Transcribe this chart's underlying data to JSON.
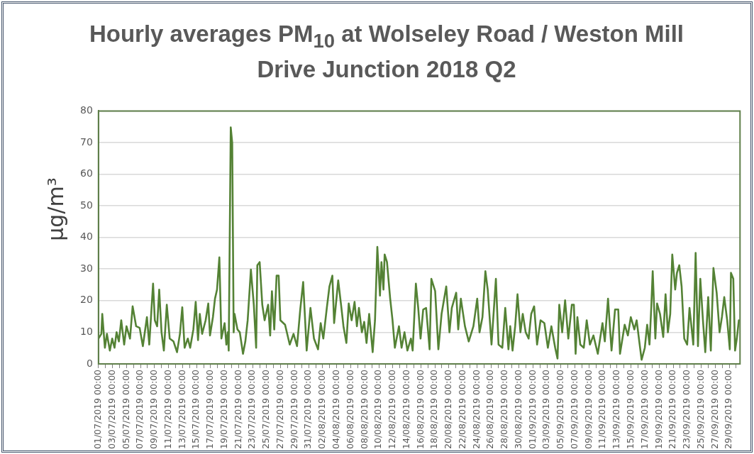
{
  "chart_data": {
    "type": "line",
    "title": "Hourly averages PM$_{10}$ at Wolseley Road / Weston Mill Drive Junction 2018 Q2",
    "ylabel": "µg/m³",
    "xlim": [
      "2019-07-01T00:00",
      "2019-09-30T13:00"
    ],
    "ylim": [
      0,
      80
    ],
    "yticks": [
      0,
      10,
      20,
      30,
      40,
      50,
      60,
      70,
      80
    ],
    "grid": "y",
    "legend": false,
    "marker": "none",
    "line_style": "solid",
    "xticks": [
      {
        "value": "2019-07-01T00:00",
        "label": "01/07/2019 00:00"
      },
      {
        "value": "2019-07-02T00:00",
        "label": null
      },
      {
        "value": "2019-07-03T00:00",
        "label": "03/07/2019 00:00"
      },
      {
        "value": "2019-07-04T00:00",
        "label": null
      },
      {
        "value": "2019-07-05T00:00",
        "label": "05/07/2019 00:00"
      },
      {
        "value": "2019-07-06T00:00",
        "label": null
      },
      {
        "value": "2019-07-07T00:00",
        "label": "07/07/2019 00:00"
      },
      {
        "value": "2019-07-08T00:00",
        "label": null
      },
      {
        "value": "2019-07-09T00:00",
        "label": "09/07/2019 00:00"
      },
      {
        "value": "2019-07-10T00:00",
        "label": null
      },
      {
        "value": "2019-07-11T00:00",
        "label": "11/07/2019 00:00"
      },
      {
        "value": "2019-07-12T00:00",
        "label": null
      },
      {
        "value": "2019-07-13T00:00",
        "label": "13/07/2019 00:00"
      },
      {
        "value": "2019-07-14T00:00",
        "label": null
      },
      {
        "value": "2019-07-15T00:00",
        "label": "15/07/2019 00:00"
      },
      {
        "value": "2019-07-16T00:00",
        "label": null
      },
      {
        "value": "2019-07-17T00:00",
        "label": "17/07/2019 00:00"
      },
      {
        "value": "2019-07-18T00:00",
        "label": null
      },
      {
        "value": "2019-07-19T00:00",
        "label": "19/07/2019 00:00"
      },
      {
        "value": "2019-07-20T00:00",
        "label": null
      },
      {
        "value": "2019-07-21T00:00",
        "label": "21/07/2019 00:00"
      },
      {
        "value": "2019-07-22T00:00",
        "label": null
      },
      {
        "value": "2019-07-23T00:00",
        "label": "23/07/2019 00:00"
      },
      {
        "value": "2019-07-24T00:00",
        "label": null
      },
      {
        "value": "2019-07-25T00:00",
        "label": "25/07/2019 00:00"
      },
      {
        "value": "2019-07-26T00:00",
        "label": null
      },
      {
        "value": "2019-07-27T00:00",
        "label": "27/07/2019 00:00"
      },
      {
        "value": "2019-07-28T00:00",
        "label": null
      },
      {
        "value": "2019-07-29T00:00",
        "label": "29/07/2019 00:00"
      },
      {
        "value": "2019-07-30T00:00",
        "label": null
      },
      {
        "value": "2019-07-31T00:00",
        "label": "31/07/2019 00:00"
      },
      {
        "value": "2019-08-01T00:00",
        "label": null
      },
      {
        "value": "2019-08-02T00:00",
        "label": "02/08/2019 00:00"
      },
      {
        "value": "2019-08-03T00:00",
        "label": null
      },
      {
        "value": "2019-08-04T00:00",
        "label": "04/08/2019 00:00"
      },
      {
        "value": "2019-08-05T00:00",
        "label": null
      },
      {
        "value": "2019-08-06T00:00",
        "label": "06/08/2019 00:00"
      },
      {
        "value": "2019-08-07T00:00",
        "label": null
      },
      {
        "value": "2019-08-08T00:00",
        "label": "08/08/2019 00:00"
      },
      {
        "value": "2019-08-09T00:00",
        "label": null
      },
      {
        "value": "2019-08-10T00:00",
        "label": "10/08/2019 00:00"
      },
      {
        "value": "2019-08-11T00:00",
        "label": null
      },
      {
        "value": "2019-08-12T00:00",
        "label": "12/08/2019 00:00"
      },
      {
        "value": "2019-08-13T00:00",
        "label": null
      },
      {
        "value": "2019-08-14T00:00",
        "label": "14/08/2019 00:00"
      },
      {
        "value": "2019-08-15T00:00",
        "label": null
      },
      {
        "value": "2019-08-16T00:00",
        "label": "16/08/2019 00:00"
      },
      {
        "value": "2019-08-17T00:00",
        "label": null
      },
      {
        "value": "2019-08-18T00:00",
        "label": "18/08/2019 00:00"
      },
      {
        "value": "2019-08-19T00:00",
        "label": null
      },
      {
        "value": "2019-08-20T00:00",
        "label": "20/08/2019 00:00"
      },
      {
        "value": "2019-08-21T00:00",
        "label": null
      },
      {
        "value": "2019-08-22T00:00",
        "label": "22/08/2019 00:00"
      },
      {
        "value": "2019-08-23T00:00",
        "label": null
      },
      {
        "value": "2019-08-24T00:00",
        "label": "24/08/2019 00:00"
      },
      {
        "value": "2019-08-25T00:00",
        "label": null
      },
      {
        "value": "2019-08-26T00:00",
        "label": "26/08/2019 00:00"
      },
      {
        "value": "2019-08-27T00:00",
        "label": null
      },
      {
        "value": "2019-08-28T00:00",
        "label": "28/08/2019 00:00"
      },
      {
        "value": "2019-08-29T00:00",
        "label": null
      },
      {
        "value": "2019-08-30T00:00",
        "label": "30/08/2019 00:00"
      },
      {
        "value": "2019-08-31T00:00",
        "label": null
      },
      {
        "value": "2019-09-01T00:00",
        "label": "01/09/2019 00:00"
      },
      {
        "value": "2019-09-02T00:00",
        "label": null
      },
      {
        "value": "2019-09-03T00:00",
        "label": "03/09/2019 00:00"
      },
      {
        "value": "2019-09-04T00:00",
        "label": null
      },
      {
        "value": "2019-09-05T00:00",
        "label": "05/09/2019 00:00"
      },
      {
        "value": "2019-09-06T00:00",
        "label": null
      },
      {
        "value": "2019-09-07T00:00",
        "label": "07/09/2019 00:00"
      },
      {
        "value": "2019-09-08T00:00",
        "label": null
      },
      {
        "value": "2019-09-09T00:00",
        "label": "09/09/2019 00:00"
      },
      {
        "value": "2019-09-10T00:00",
        "label": null
      },
      {
        "value": "2019-09-11T00:00",
        "label": "11/09/2019 00:00"
      },
      {
        "value": "2019-09-12T00:00",
        "label": null
      },
      {
        "value": "2019-09-13T00:00",
        "label": "13/09/2019 00:00"
      },
      {
        "value": "2019-09-14T00:00",
        "label": null
      },
      {
        "value": "2019-09-15T00:00",
        "label": "15/09/2019 00:00"
      },
      {
        "value": "2019-09-16T00:00",
        "label": null
      },
      {
        "value": "2019-09-17T00:00",
        "label": "17/09/2019 00:00"
      },
      {
        "value": "2019-09-18T00:00",
        "label": null
      },
      {
        "value": "2019-09-19T00:00",
        "label": "19/09/2019 00:00"
      },
      {
        "value": "2019-09-20T00:00",
        "label": null
      },
      {
        "value": "2019-09-21T00:00",
        "label": "21/09/2019 00:00"
      },
      {
        "value": "2019-09-22T00:00",
        "label": null
      },
      {
        "value": "2019-09-23T00:00",
        "label": "23/09/2019 00:00"
      },
      {
        "value": "2019-09-24T00:00",
        "label": null
      },
      {
        "value": "2019-09-25T00:00",
        "label": "25/09/2019 00:00"
      },
      {
        "value": "2019-09-26T00:00",
        "label": null
      },
      {
        "value": "2019-09-27T00:00",
        "label": "27/09/2019 00:00"
      },
      {
        "value": "2019-09-28T00:00",
        "label": null
      },
      {
        "value": "2019-09-29T00:00",
        "label": "29/09/2019 00:00"
      },
      {
        "value": "2019-09-30T00:00",
        "label": null
      }
    ],
    "series": [
      {
        "color": "#548235",
        "x": [
          "2019-07-01T00:00",
          "2019-07-01T10:00",
          "2019-07-01T13:00",
          "2019-07-01T22:00",
          "2019-07-02T05:00",
          "2019-07-02T15:00",
          "2019-07-02T23:00",
          "2019-07-03T07:00",
          "2019-07-03T14:00",
          "2019-07-03T22:00",
          "2019-07-04T06:00",
          "2019-07-04T16:00",
          "2019-07-05T00:00",
          "2019-07-05T12:00",
          "2019-07-05T21:00",
          "2019-07-06T09:00",
          "2019-07-06T21:00",
          "2019-07-07T08:00",
          "2019-07-07T22:00",
          "2019-07-08T06:00",
          "2019-07-08T19:00",
          "2019-07-09T01:00",
          "2019-07-09T09:00",
          "2019-07-09T16:00",
          "2019-07-10T00:00",
          "2019-07-10T08:00",
          "2019-07-10T18:00",
          "2019-07-11T04:00",
          "2019-07-11T17:00",
          "2019-07-12T05:00",
          "2019-07-12T15:00",
          "2019-07-12T23:00",
          "2019-07-13T07:00",
          "2019-07-13T18:00",
          "2019-07-14T02:00",
          "2019-07-14T13:00",
          "2019-07-14T21:00",
          "2019-07-15T05:00",
          "2019-07-15T11:00",
          "2019-07-15T19:00",
          "2019-07-16T07:00",
          "2019-07-16T16:00",
          "2019-07-16T22:00",
          "2019-07-17T08:00",
          "2019-07-17T15:00",
          "2019-07-17T22:00",
          "2019-07-18T06:00",
          "2019-07-18T13:00",
          "2019-07-19T00:00",
          "2019-07-19T06:00",
          "2019-07-19T11:00",
          "2019-07-19T14:00",
          "2019-07-19T21:00",
          "2019-07-20T02:00",
          "2019-07-20T07:00",
          "2019-07-20T10:00",
          "2019-07-20T20:00",
          "2019-07-21T04:00",
          "2019-07-21T15:00",
          "2019-07-21T23:00",
          "2019-07-22T07:00",
          "2019-07-22T13:00",
          "2019-07-22T18:00",
          "2019-07-23T04:00",
          "2019-07-23T12:00",
          "2019-07-23T16:00",
          "2019-07-24T00:00",
          "2019-07-24T09:00",
          "2019-07-24T17:00",
          "2019-07-25T05:00",
          "2019-07-25T12:00",
          "2019-07-25T18:00",
          "2019-07-26T02:00",
          "2019-07-26T10:00",
          "2019-07-26T17:00",
          "2019-07-26T23:00",
          "2019-07-27T15:00",
          "2019-07-28T07:00",
          "2019-07-28T20:00",
          "2019-07-29T08:00",
          "2019-07-29T19:00",
          "2019-07-30T05:00",
          "2019-07-30T17:00",
          "2019-07-31T06:00",
          "2019-07-31T18:00",
          "2019-08-01T08:00",
          "2019-08-01T17:00",
          "2019-08-02T02:00",
          "2019-08-02T14:00",
          "2019-08-02T23:00",
          "2019-08-03T09:00",
          "2019-08-03T15:00",
          "2019-08-04T05:00",
          "2019-08-04T16:00",
          "2019-08-04T23:00",
          "2019-08-05T09:00",
          "2019-08-05T17:00",
          "2019-08-06T03:00",
          "2019-08-06T13:00",
          "2019-08-06T21:00",
          "2019-08-07T04:00",
          "2019-08-07T14:00",
          "2019-08-07T22:00",
          "2019-08-08T06:00",
          "2019-08-08T15:00",
          "2019-08-09T03:00",
          "2019-08-09T11:00",
          "2019-08-09T19:00",
          "2019-08-10T04:00",
          "2019-08-10T09:00",
          "2019-08-10T16:00",
          "2019-08-10T20:00",
          "2019-08-11T04:00",
          "2019-08-11T15:00",
          "2019-08-11T23:00",
          "2019-08-12T07:00",
          "2019-08-12T21:00",
          "2019-08-13T06:00",
          "2019-08-13T16:00",
          "2019-08-14T02:00",
          "2019-08-14T14:00",
          "2019-08-14T20:00",
          "2019-08-15T07:00",
          "2019-08-15T15:00",
          "2019-08-15T23:00",
          "2019-08-16T08:00",
          "2019-08-16T18:00",
          "2019-08-17T06:00",
          "2019-08-17T12:00",
          "2019-08-18T01:00",
          "2019-08-18T12:00",
          "2019-08-18T23:00",
          "2019-08-19T15:00",
          "2019-08-20T02:00",
          "2019-08-20T10:00",
          "2019-08-21T01:00",
          "2019-08-21T08:00",
          "2019-08-21T17:00",
          "2019-08-22T07:00",
          "2019-08-22T20:00",
          "2019-08-23T12:00",
          "2019-08-24T01:00",
          "2019-08-24T09:00",
          "2019-08-24T19:00",
          "2019-08-25T05:00",
          "2019-08-25T13:00",
          "2019-08-26T02:00",
          "2019-08-26T17:00",
          "2019-08-27T02:00",
          "2019-08-27T15:00",
          "2019-08-28T01:00",
          "2019-08-28T12:00",
          "2019-08-28T18:00",
          "2019-08-29T02:00",
          "2019-08-29T11:00",
          "2019-08-29T19:00",
          "2019-08-30T05:00",
          "2019-08-30T13:00",
          "2019-08-30T23:00",
          "2019-08-31T09:00",
          "2019-08-31T18:00",
          "2019-09-01T04:00",
          "2019-09-01T14:00",
          "2019-09-02T02:00",
          "2019-09-02T15:00",
          "2019-09-03T03:00",
          "2019-09-03T15:00",
          "2019-09-04T04:00",
          "2019-09-04T12:00",
          "2019-09-04T18:00",
          "2019-09-05T04:00",
          "2019-09-05T14:00",
          "2019-09-06T01:00",
          "2019-09-06T13:00",
          "2019-09-06T20:00",
          "2019-09-07T02:00",
          "2019-09-07T08:00",
          "2019-09-07T18:00",
          "2019-09-08T06:00",
          "2019-09-08T16:00",
          "2019-09-09T03:00",
          "2019-09-09T15:00",
          "2019-09-10T06:00",
          "2019-09-10T22:00",
          "2019-09-11T06:00",
          "2019-09-11T17:00",
          "2019-09-12T05:00",
          "2019-09-12T17:00",
          "2019-09-13T04:00",
          "2019-09-13T10:00",
          "2019-09-14T02:00",
          "2019-09-14T13:00",
          "2019-09-14T23:00",
          "2019-09-15T11:00",
          "2019-09-15T19:00",
          "2019-09-16T04:00",
          "2019-09-16T12:00",
          "2019-09-16T23:00",
          "2019-09-17T07:00",
          "2019-09-17T15:00",
          "2019-09-17T21:00",
          "2019-09-18T02:00",
          "2019-09-18T11:00",
          "2019-09-18T17:00",
          "2019-09-19T03:00",
          "2019-09-19T14:00",
          "2019-09-19T22:00",
          "2019-09-20T06:00",
          "2019-09-20T14:00",
          "2019-09-20T21:00",
          "2019-09-21T07:00",
          "2019-09-21T13:00",
          "2019-09-21T21:00",
          "2019-09-22T05:00",
          "2019-09-22T14:00",
          "2019-09-23T00:00",
          "2019-09-23T08:00",
          "2019-09-23T21:00",
          "2019-09-24T05:00",
          "2019-09-24T13:00",
          "2019-09-24T21:00",
          "2019-09-25T06:00",
          "2019-09-25T14:00",
          "2019-09-26T00:00",
          "2019-09-26T09:00",
          "2019-09-26T18:00",
          "2019-09-27T05:00",
          "2019-09-27T15:00",
          "2019-09-27T23:00",
          "2019-09-28T07:00",
          "2019-09-28T17:00",
          "2019-09-29T02:00",
          "2019-09-29T06:00",
          "2019-09-29T14:00",
          "2019-09-29T20:00",
          "2019-09-30T02:00",
          "2019-09-30T09:00"
        ],
        "values": [
          8,
          9.5,
          15.8,
          5.1,
          9.5,
          4.2,
          8,
          5.1,
          10,
          7.1,
          13.8,
          6.1,
          11.9,
          8,
          18.2,
          11.9,
          11.4,
          5.6,
          14.8,
          6.1,
          25.4,
          13.8,
          11.9,
          23.5,
          10,
          4.2,
          18.7,
          8,
          7.1,
          3.7,
          9.5,
          17.9,
          5.1,
          8,
          5.1,
          10.9,
          19.6,
          7.5,
          15.8,
          9.5,
          13.8,
          19.1,
          9,
          14.8,
          20.6,
          23.5,
          33.7,
          8,
          12.9,
          6.1,
          10,
          4.2,
          74.8,
          69.9,
          10,
          15.8,
          10.9,
          10,
          3.2,
          7.1,
          13.8,
          22.5,
          29.8,
          18.7,
          5.1,
          31.2,
          32.2,
          18.7,
          13.8,
          18.7,
          9,
          23,
          10.9,
          27.9,
          27.9,
          13.8,
          12.4,
          6.1,
          9.5,
          5.6,
          17.2,
          25.9,
          4.2,
          17.7,
          8,
          4.6,
          12.9,
          8,
          17.7,
          24.5,
          27.9,
          12.9,
          26.4,
          17.7,
          11.9,
          6.6,
          19.1,
          13.8,
          19.6,
          11.9,
          17.7,
          10,
          13.3,
          6.6,
          15.8,
          3.7,
          13.8,
          37,
          21.6,
          32.2,
          23.5,
          34.6,
          32.2,
          20.6,
          13.8,
          5.1,
          11.9,
          5.1,
          10,
          4.2,
          8,
          4.2,
          25.4,
          17.7,
          8,
          17.2,
          17.7,
          4.6,
          26.9,
          23,
          4.6,
          15.8,
          24.5,
          10,
          17.7,
          22.5,
          10.9,
          20.6,
          11.9,
          7.1,
          11.9,
          20.6,
          10,
          14.8,
          29.3,
          23.5,
          6.1,
          26.9,
          6.1,
          5.1,
          17.7,
          4.6,
          11.9,
          4.2,
          11.9,
          22,
          10,
          15.8,
          10,
          8,
          15.8,
          18.2,
          6.1,
          13.8,
          12.9,
          5.1,
          11.9,
          5.1,
          1.7,
          18.7,
          10,
          20.1,
          8,
          18.7,
          18.7,
          3.2,
          14.8,
          6.1,
          5.1,
          13.8,
          6.1,
          9,
          3.2,
          12.9,
          7.1,
          20.6,
          4.2,
          17.2,
          17.2,
          3.2,
          12.4,
          9,
          14.8,
          10.9,
          13.8,
          7.1,
          1.3,
          5.1,
          12.4,
          6.1,
          17.7,
          29.3,
          8,
          19.1,
          15.8,
          8.5,
          22,
          10,
          15.8,
          34.6,
          23.5,
          28.8,
          31.2,
          24.5,
          8,
          6.1,
          17.7,
          6.1,
          35.1,
          5.6,
          26.9,
          13.8,
          3.7,
          21.1,
          4.2,
          30.3,
          22.5,
          10,
          14.8,
          21.1,
          13.8,
          4.6,
          28.8,
          26.9,
          4.2,
          8,
          13.8
        ]
      }
    ]
  }
}
